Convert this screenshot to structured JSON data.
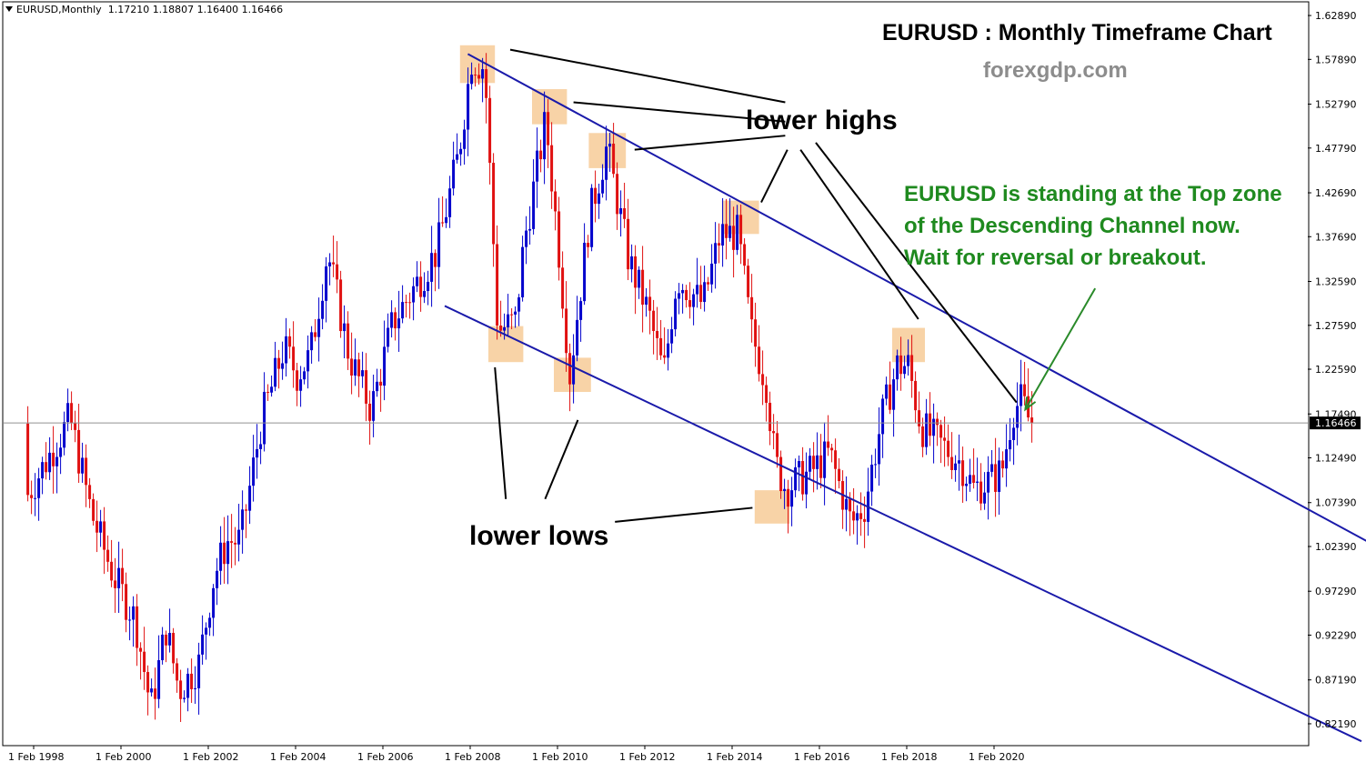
{
  "header": {
    "symbol": "EURUSD,Monthly",
    "ohlc": "1.17210 1.18807 1.16400 1.16466"
  },
  "annotations": {
    "title": "EURUSD : Monthly Timeframe Chart",
    "site": "forexgdp.com",
    "lower_highs": "lower highs",
    "lower_lows": "lower lows",
    "note_lines": [
      "EURUSD is standing at the Top zone",
      "of the Descending Channel now.",
      "Wait for reversal or breakout."
    ]
  },
  "colors": {
    "bull": "#0000cc",
    "bear": "#e01010",
    "channel": "#1a1aaa",
    "zone": "#f5c48a",
    "annotation_green": "#1f8a1f",
    "note_arrow": "#2a8a2a",
    "price_line": "#909090"
  },
  "chart_data": {
    "type": "candlestick",
    "title": "EURUSD : Monthly Timeframe Chart",
    "timeframe": "Monthly",
    "current_price": 1.16466,
    "price_label": "1.16466",
    "ylim": [
      0.797,
      1.6445
    ],
    "y_ticks": [
      1.6289,
      1.5789,
      1.5279,
      1.4779,
      1.4269,
      1.3769,
      1.3259,
      1.2759,
      1.2259,
      1.1749,
      1.1249,
      1.0739,
      1.0239,
      0.9729,
      0.9229,
      0.8719,
      0.8219
    ],
    "y_tick_labels": [
      "1.62890",
      "1.57890",
      "1.52790",
      "1.47790",
      "1.42690",
      "1.37690",
      "1.32590",
      "1.27590",
      "1.22590",
      "1.17490",
      "1.12490",
      "1.07390",
      "1.02390",
      "0.97290",
      "0.92290",
      "0.87190",
      "0.82190"
    ],
    "x_ticks": [
      "1 Feb 1998",
      "1 Feb 2000",
      "1 Feb 2002",
      "1 Feb 2004",
      "1 Feb 2006",
      "1 Feb 2008",
      "1 Feb 2010",
      "1 Feb 2012",
      "1 Feb 2014",
      "1 Feb 2016",
      "1 Feb 2018",
      "1 Feb 2020"
    ],
    "x_tick_years": [
      1998,
      2000,
      2002,
      2004,
      2006,
      2008,
      2010,
      2012,
      2014,
      2016,
      2018,
      2020
    ],
    "close_path_anchors": [
      [
        1998.0,
        1.08
      ],
      [
        1999.0,
        1.17
      ],
      [
        1999.5,
        1.06
      ],
      [
        2000.0,
        0.99
      ],
      [
        2000.5,
        0.94
      ],
      [
        2000.85,
        0.84
      ],
      [
        2001.2,
        0.93
      ],
      [
        2001.5,
        0.86
      ],
      [
        2001.95,
        0.89
      ],
      [
        2002.3,
        0.99
      ],
      [
        2002.6,
        1.03
      ],
      [
        2002.9,
        1.03
      ],
      [
        2003.4,
        1.17
      ],
      [
        2003.9,
        1.25
      ],
      [
        2004.2,
        1.22
      ],
      [
        2004.5,
        1.24
      ],
      [
        2004.9,
        1.36
      ],
      [
        2005.4,
        1.24
      ],
      [
        2005.9,
        1.18
      ],
      [
        2006.4,
        1.28
      ],
      [
        2006.9,
        1.32
      ],
      [
        2007.4,
        1.36
      ],
      [
        2007.9,
        1.47
      ],
      [
        2008.2,
        1.58
      ],
      [
        2008.5,
        1.57
      ],
      [
        2008.8,
        1.27
      ],
      [
        2009.2,
        1.28
      ],
      [
        2009.4,
        1.37
      ],
      [
        2009.9,
        1.51
      ],
      [
        2010.2,
        1.36
      ],
      [
        2010.45,
        1.22
      ],
      [
        2010.9,
        1.4
      ],
      [
        2011.3,
        1.48
      ],
      [
        2011.8,
        1.35
      ],
      [
        2012.25,
        1.29
      ],
      [
        2012.6,
        1.22
      ],
      [
        2012.9,
        1.33
      ],
      [
        2013.5,
        1.3
      ],
      [
        2013.9,
        1.38
      ],
      [
        2014.3,
        1.38
      ],
      [
        2014.6,
        1.27
      ],
      [
        2014.95,
        1.21
      ],
      [
        2015.15,
        1.12
      ],
      [
        2015.4,
        1.09
      ],
      [
        2016.0,
        1.11
      ],
      [
        2016.4,
        1.13
      ],
      [
        2016.9,
        1.05
      ],
      [
        2017.2,
        1.07
      ],
      [
        2017.6,
        1.17
      ],
      [
        2017.95,
        1.23
      ],
      [
        2018.2,
        1.23
      ],
      [
        2018.5,
        1.16
      ],
      [
        2018.95,
        1.14
      ],
      [
        2019.4,
        1.12
      ],
      [
        2019.7,
        1.09
      ],
      [
        2020.1,
        1.1
      ],
      [
        2020.35,
        1.11
      ],
      [
        2020.6,
        1.18
      ],
      [
        2020.8,
        1.19
      ],
      [
        2021.0,
        1.164
      ]
    ],
    "channel_lines": [
      {
        "name": "upper",
        "points": [
          [
            2008.03,
            1.585
          ],
          [
            2032.0,
            0.939
          ]
        ]
      },
      {
        "name": "lower",
        "points": [
          [
            2007.5,
            1.298
          ],
          [
            2028.5,
            0.802
          ]
        ]
      }
    ],
    "highlight_zones": [
      {
        "label": "lower highs",
        "x": [
          2007.85,
          2008.65
        ],
        "y": [
          1.552,
          1.595
        ]
      },
      {
        "label": "lower highs",
        "x": [
          2009.5,
          2010.3
        ],
        "y": [
          1.505,
          1.545
        ]
      },
      {
        "label": "lower highs",
        "x": [
          2010.8,
          2011.65
        ],
        "y": [
          1.455,
          1.495
        ]
      },
      {
        "label": "lower highs",
        "x": [
          2013.85,
          2014.7
        ],
        "y": [
          1.38,
          1.418
        ]
      },
      {
        "label": "lower highs",
        "x": [
          2017.75,
          2018.5
        ],
        "y": [
          1.234,
          1.273
        ]
      },
      {
        "label": "lower lows",
        "x": [
          2008.5,
          2009.3
        ],
        "y": [
          1.234,
          1.275
        ]
      },
      {
        "label": "lower lows",
        "x": [
          2010.0,
          2010.85
        ],
        "y": [
          1.2,
          1.239
        ]
      },
      {
        "label": "lower lows",
        "x": [
          2014.6,
          2015.4
        ],
        "y": [
          1.05,
          1.088
        ]
      }
    ],
    "pointer_lines": [
      {
        "from": [
          2009.0,
          1.59
        ],
        "to": [
          2015.3,
          1.53
        ]
      },
      {
        "from": [
          2010.45,
          1.53
        ],
        "to": [
          2015.3,
          1.508
        ]
      },
      {
        "from": [
          2011.85,
          1.476
        ],
        "to": [
          2015.3,
          1.492
        ]
      },
      {
        "from": [
          2015.35,
          1.476
        ],
        "to": [
          2014.75,
          1.416
        ]
      },
      {
        "from": [
          2015.65,
          1.476
        ],
        "to": [
          2018.35,
          1.283
        ]
      },
      {
        "from": [
          2016.0,
          1.484
        ],
        "to": [
          2020.6,
          1.188
        ]
      },
      {
        "from": [
          2008.65,
          1.228
        ],
        "to": [
          2008.9,
          1.078
        ]
      },
      {
        "from": [
          2010.55,
          1.168
        ],
        "to": [
          2009.8,
          1.078
        ]
      },
      {
        "from": [
          2011.4,
          1.052
        ],
        "to": [
          2014.55,
          1.068
        ]
      }
    ],
    "note_arrow": {
      "from": [
        2022.4,
        1.318
      ],
      "to": [
        2020.8,
        1.18
      ]
    }
  }
}
